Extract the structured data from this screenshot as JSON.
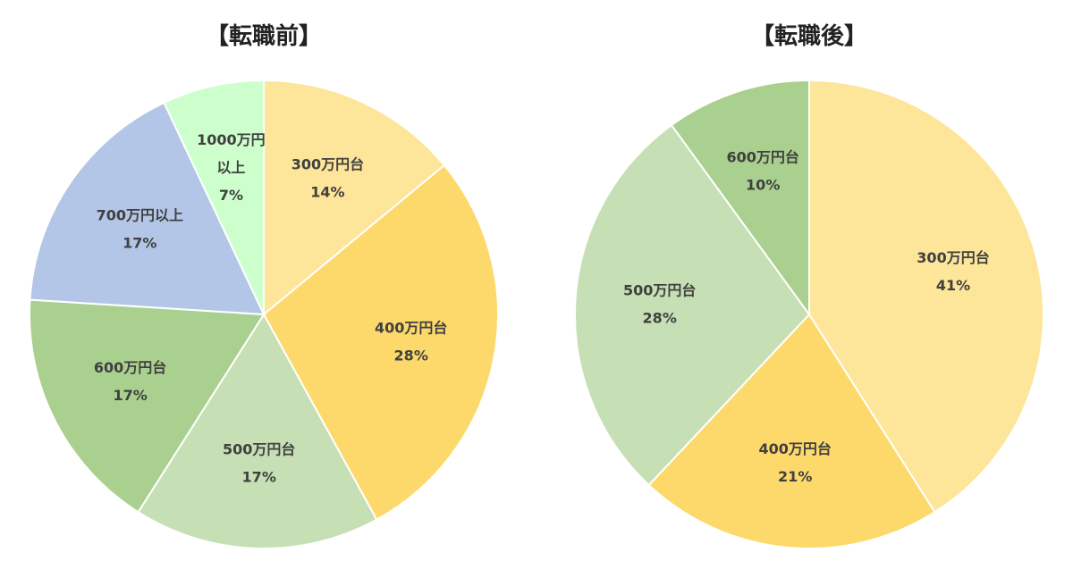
{
  "chart_data": [
    {
      "type": "pie",
      "title": "【転職前】",
      "start_angle_deg": 0,
      "direction": "clockwise",
      "slice_border_color": "#ffffff",
      "slices": [
        {
          "label_lines": [
            "300万円台"
          ],
          "label": "300万円台",
          "value": 14,
          "value_text": "14%",
          "color": "#fde59a"
        },
        {
          "label_lines": [
            "400万円台"
          ],
          "label": "400万円台",
          "value": 28,
          "value_text": "28%",
          "color": "#fdd96b"
        },
        {
          "label_lines": [
            "500万円台"
          ],
          "label": "500万円台",
          "value": 17,
          "value_text": "17%",
          "color": "#c6dfb4"
        },
        {
          "label_lines": [
            "600万円台"
          ],
          "label": "600万円台",
          "value": 17,
          "value_text": "17%",
          "color": "#a9d08e"
        },
        {
          "label_lines": [
            "700万円以上"
          ],
          "label": "700万円以上",
          "value": 17,
          "value_text": "17%",
          "color": "#b4c6e7"
        },
        {
          "label_lines": [
            "1000万円",
            "以上"
          ],
          "label": "1000万円以上",
          "value": 7,
          "value_text": "7%",
          "color": "#ccffcc"
        }
      ]
    },
    {
      "type": "pie",
      "title": "【転職後】",
      "start_angle_deg": 0,
      "direction": "clockwise",
      "slice_border_color": "#ffffff",
      "slices": [
        {
          "label_lines": [
            "300万円台"
          ],
          "label": "300万円台",
          "value": 41,
          "value_text": "41%",
          "color": "#fde59a"
        },
        {
          "label_lines": [
            "400万円台"
          ],
          "label": "400万円台",
          "value": 21,
          "value_text": "21%",
          "color": "#fdd96b"
        },
        {
          "label_lines": [
            "500万円台"
          ],
          "label": "500万円台",
          "value": 28,
          "value_text": "28%",
          "color": "#c6dfb4"
        },
        {
          "label_lines": [
            "600万円台"
          ],
          "label": "600万円台",
          "value": 10,
          "value_text": "10%",
          "color": "#a9d08e"
        }
      ]
    }
  ]
}
